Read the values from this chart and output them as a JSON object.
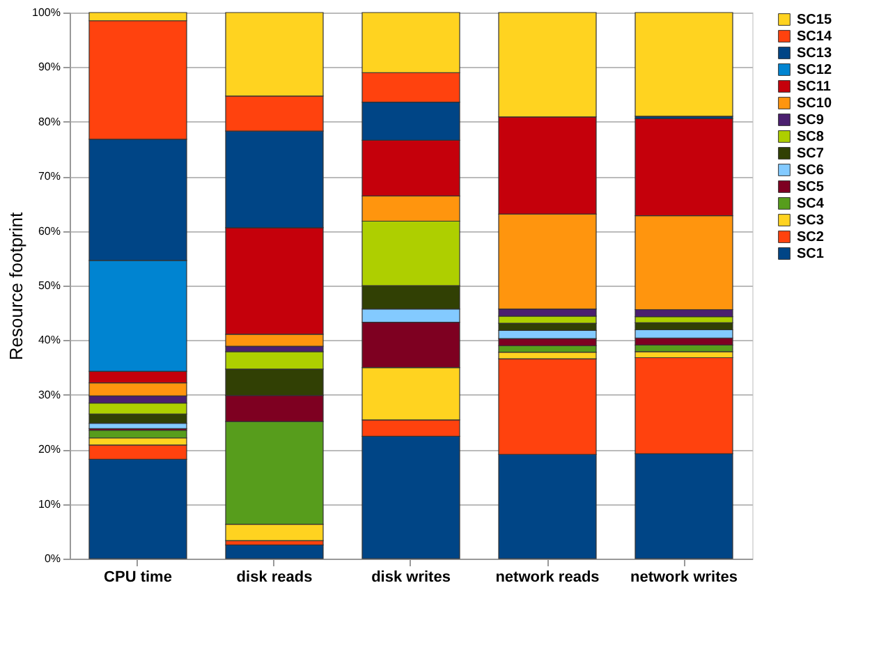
{
  "chart_data": {
    "type": "bar",
    "stacked": true,
    "ylabel": "Resource footprint",
    "categories": [
      "CPU time",
      "disk reads",
      "disk writes",
      "network reads",
      "network writes"
    ],
    "ylim": [
      0,
      100
    ],
    "yticks": [
      {
        "value": 0,
        "label": "0%"
      },
      {
        "value": 10,
        "label": "10%"
      },
      {
        "value": 20,
        "label": "20%"
      },
      {
        "value": 30,
        "label": "30%"
      },
      {
        "value": 40,
        "label": "40%"
      },
      {
        "value": 50,
        "label": "50%"
      },
      {
        "value": 60,
        "label": "60%"
      },
      {
        "value": 70,
        "label": "70%"
      },
      {
        "value": 80,
        "label": "80%"
      },
      {
        "value": 90,
        "label": "90%"
      },
      {
        "value": 100,
        "label": "100%"
      }
    ],
    "grid": "y",
    "legend": "right",
    "series": [
      {
        "name": "SC1",
        "color": "#004586",
        "values": [
          18.2,
          2.5,
          22.4,
          19.1,
          19.2
        ]
      },
      {
        "name": "SC2",
        "color": "#ff420e",
        "values": [
          2.6,
          0.8,
          3.0,
          17.5,
          17.6
        ]
      },
      {
        "name": "SC3",
        "color": "#ffd320",
        "values": [
          1.3,
          3.0,
          9.6,
          1.2,
          1.1
        ]
      },
      {
        "name": "SC4",
        "color": "#579d1c",
        "values": [
          1.4,
          18.8,
          0,
          1.2,
          1.2
        ]
      },
      {
        "name": "SC5",
        "color": "#7e0021",
        "values": [
          0.3,
          4.8,
          8.3,
          1.3,
          1.3
        ]
      },
      {
        "name": "SC6",
        "color": "#83caff",
        "values": [
          1.0,
          0,
          2.4,
          1.5,
          1.5
        ]
      },
      {
        "name": "SC7",
        "color": "#314004",
        "values": [
          1.7,
          4.8,
          4.3,
          1.3,
          1.3
        ]
      },
      {
        "name": "SC8",
        "color": "#aecf00",
        "values": [
          2.0,
          3.2,
          11.8,
          1.3,
          1.1
        ]
      },
      {
        "name": "SC9",
        "color": "#4b1f6f",
        "values": [
          1.3,
          1.0,
          0,
          1.3,
          1.3
        ]
      },
      {
        "name": "SC10",
        "color": "#ff950e",
        "values": [
          2.4,
          2.2,
          4.6,
          17.4,
          17.2
        ]
      },
      {
        "name": "SC11",
        "color": "#c5000b",
        "values": [
          2.1,
          19.5,
          10.2,
          17.8,
          17.8
        ]
      },
      {
        "name": "SC12",
        "color": "#0084d1",
        "values": [
          20.3,
          0,
          0,
          0,
          0
        ]
      },
      {
        "name": "SC13",
        "color": "#004586",
        "values": [
          22.2,
          17.7,
          7.0,
          null,
          0.4
        ]
      },
      {
        "name": "SC14",
        "color": "#ff420e",
        "values": [
          21.7,
          6.4,
          5.4,
          0,
          0
        ]
      },
      {
        "name": "SC15",
        "color": "#ffd320",
        "values": [
          1.5,
          15.3,
          11.0,
          19.1,
          19.0
        ]
      }
    ]
  }
}
